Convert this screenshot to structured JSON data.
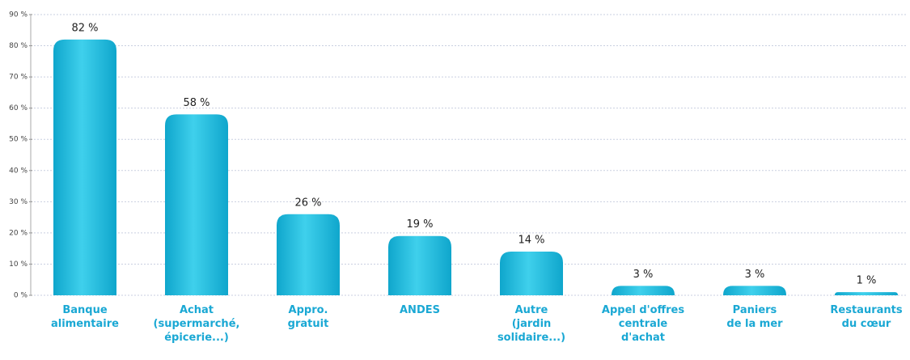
{
  "chart_data": {
    "type": "bar",
    "categories": [
      "Banque\nalimentaire",
      "Achat\n(supermarché,\népicerie...)",
      "Appro.\ngratuit",
      "ANDES",
      "Autre\n(jardin\nsolidaire...)",
      "Appel d'offres\ncentrale\nd'achat",
      "Paniers\nde la mer",
      "Restaurants\ndu cœur"
    ],
    "values": [
      82,
      58,
      26,
      19,
      14,
      3,
      3,
      1
    ],
    "value_labels": [
      "82 %",
      "58 %",
      "26 %",
      "19 %",
      "14 %",
      "3 %",
      "3 %",
      "1 %"
    ],
    "color": "#1ab6d9",
    "ylim": [
      0,
      90
    ],
    "yticks": [
      {
        "value": 0,
        "label": "0 %"
      },
      {
        "value": 10,
        "label": "10 %"
      },
      {
        "value": 20,
        "label": "20 %"
      },
      {
        "value": 30,
        "label": "30 %"
      },
      {
        "value": 40,
        "label": "40 %"
      },
      {
        "value": 50,
        "label": "50 %"
      },
      {
        "value": 60,
        "label": "60 %"
      },
      {
        "value": 70,
        "label": "70 %"
      },
      {
        "value": 80,
        "label": "80 %"
      },
      {
        "value": 90,
        "label": "90 %"
      }
    ],
    "grid": true
  }
}
